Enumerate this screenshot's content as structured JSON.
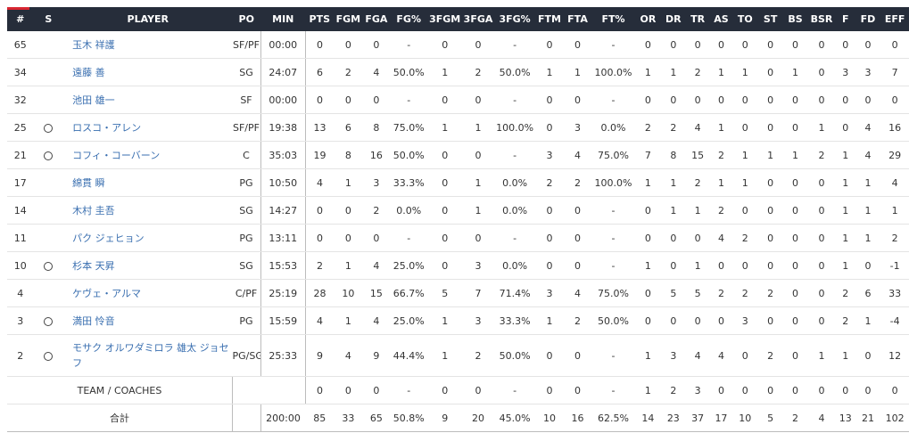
{
  "headers": [
    "#",
    "S",
    "PLAYER",
    "PO",
    "MIN",
    "PTS",
    "FGM",
    "FGA",
    "FG%",
    "3FGM",
    "3FGA",
    "3FG%",
    "FTM",
    "FTA",
    "FT%",
    "OR",
    "DR",
    "TR",
    "AS",
    "TO",
    "ST",
    "BS",
    "BSR",
    "F",
    "FD",
    "EFF"
  ],
  "players": [
    {
      "no": "65",
      "starter": "",
      "name": "玉木 祥護",
      "pos": "SF/PF",
      "stats": [
        "00:00",
        "0",
        "0",
        "0",
        "-",
        "0",
        "0",
        "-",
        "0",
        "0",
        "-",
        "0",
        "0",
        "0",
        "0",
        "0",
        "0",
        "0",
        "0",
        "0",
        "0",
        "0"
      ]
    },
    {
      "no": "34",
      "starter": "",
      "name": "遠藤 善",
      "pos": "SG",
      "stats": [
        "24:07",
        "6",
        "2",
        "4",
        "50.0%",
        "1",
        "2",
        "50.0%",
        "1",
        "1",
        "100.0%",
        "1",
        "1",
        "2",
        "1",
        "1",
        "0",
        "1",
        "0",
        "3",
        "3",
        "7"
      ]
    },
    {
      "no": "32",
      "starter": "",
      "name": "池田 雄一",
      "pos": "SF",
      "stats": [
        "00:00",
        "0",
        "0",
        "0",
        "-",
        "0",
        "0",
        "-",
        "0",
        "0",
        "-",
        "0",
        "0",
        "0",
        "0",
        "0",
        "0",
        "0",
        "0",
        "0",
        "0",
        "0"
      ]
    },
    {
      "no": "25",
      "starter": "○",
      "name": "ロスコ・アレン",
      "pos": "SF/PF",
      "stats": [
        "19:38",
        "13",
        "6",
        "8",
        "75.0%",
        "1",
        "1",
        "100.0%",
        "0",
        "3",
        "0.0%",
        "2",
        "2",
        "4",
        "1",
        "0",
        "0",
        "0",
        "1",
        "0",
        "4",
        "16"
      ]
    },
    {
      "no": "21",
      "starter": "○",
      "name": "コフィ・コーバーン",
      "pos": "C",
      "stats": [
        "35:03",
        "19",
        "8",
        "16",
        "50.0%",
        "0",
        "0",
        "-",
        "3",
        "4",
        "75.0%",
        "7",
        "8",
        "15",
        "2",
        "1",
        "1",
        "1",
        "2",
        "1",
        "4",
        "29"
      ]
    },
    {
      "no": "17",
      "starter": "",
      "name": "綿貫 瞬",
      "pos": "PG",
      "stats": [
        "10:50",
        "4",
        "1",
        "3",
        "33.3%",
        "0",
        "1",
        "0.0%",
        "2",
        "2",
        "100.0%",
        "1",
        "1",
        "2",
        "1",
        "1",
        "0",
        "0",
        "0",
        "1",
        "1",
        "4"
      ]
    },
    {
      "no": "14",
      "starter": "",
      "name": "木村 圭吾",
      "pos": "SG",
      "stats": [
        "14:27",
        "0",
        "0",
        "2",
        "0.0%",
        "0",
        "1",
        "0.0%",
        "0",
        "0",
        "-",
        "0",
        "1",
        "1",
        "2",
        "0",
        "0",
        "0",
        "0",
        "1",
        "1",
        "1"
      ]
    },
    {
      "no": "11",
      "starter": "",
      "name": "パク ジェヒョン",
      "pos": "PG",
      "stats": [
        "13:11",
        "0",
        "0",
        "0",
        "-",
        "0",
        "0",
        "-",
        "0",
        "0",
        "-",
        "0",
        "0",
        "0",
        "4",
        "2",
        "0",
        "0",
        "0",
        "1",
        "1",
        "2"
      ]
    },
    {
      "no": "10",
      "starter": "○",
      "name": "杉本 天昇",
      "pos": "SG",
      "stats": [
        "15:53",
        "2",
        "1",
        "4",
        "25.0%",
        "0",
        "3",
        "0.0%",
        "0",
        "0",
        "-",
        "1",
        "0",
        "1",
        "0",
        "0",
        "0",
        "0",
        "0",
        "1",
        "0",
        "-1"
      ]
    },
    {
      "no": "4",
      "starter": "",
      "name": "ケヴェ・アルマ",
      "pos": "C/PF",
      "stats": [
        "25:19",
        "28",
        "10",
        "15",
        "66.7%",
        "5",
        "7",
        "71.4%",
        "3",
        "4",
        "75.0%",
        "0",
        "5",
        "5",
        "2",
        "2",
        "2",
        "0",
        "0",
        "2",
        "6",
        "33"
      ]
    },
    {
      "no": "3",
      "starter": "○",
      "name": "満田 怜音",
      "pos": "PG",
      "stats": [
        "15:59",
        "4",
        "1",
        "4",
        "25.0%",
        "1",
        "3",
        "33.3%",
        "1",
        "2",
        "50.0%",
        "0",
        "0",
        "0",
        "0",
        "3",
        "0",
        "0",
        "0",
        "2",
        "1",
        "-4"
      ]
    },
    {
      "no": "2",
      "starter": "○",
      "name": "モサク オルワダミロラ 雄太 ジョセフ",
      "pos": "PG/SG",
      "stats": [
        "25:33",
        "9",
        "4",
        "9",
        "44.4%",
        "1",
        "2",
        "50.0%",
        "0",
        "0",
        "-",
        "1",
        "3",
        "4",
        "4",
        "0",
        "2",
        "0",
        "1",
        "1",
        "0",
        "12"
      ]
    }
  ],
  "team_row": {
    "label": "TEAM / COACHES",
    "stats": [
      "",
      "0",
      "0",
      "0",
      "-",
      "0",
      "0",
      "-",
      "0",
      "0",
      "-",
      "1",
      "2",
      "3",
      "0",
      "0",
      "0",
      "0",
      "0",
      "0",
      "0",
      "0"
    ]
  },
  "total_row": {
    "label": "合計",
    "stats": [
      "200:00",
      "85",
      "33",
      "65",
      "50.8%",
      "9",
      "20",
      "45.0%",
      "10",
      "16",
      "62.5%",
      "14",
      "23",
      "37",
      "17",
      "10",
      "5",
      "2",
      "4",
      "13",
      "21",
      "102"
    ]
  }
}
